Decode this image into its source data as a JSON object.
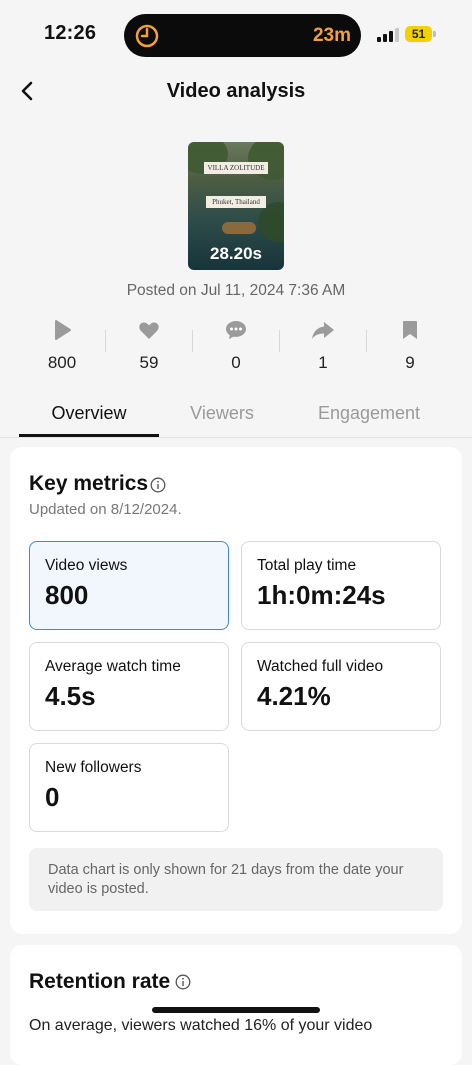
{
  "status_bar": {
    "time": "12:26",
    "timer_icon": "timer-icon",
    "timer_text": "23m",
    "battery_level": "51",
    "colors": {
      "timer": "#f3a03b",
      "battery": "#f5d000"
    }
  },
  "header": {
    "back_icon": "chevron-left-icon",
    "title": "Video analysis"
  },
  "video": {
    "thumbnail_plate_1": "VILLA ZOLITUDE",
    "thumbnail_plate_2": "Phuket, Thailand",
    "duration": "28.20s",
    "posted": "Posted on Jul 11, 2024 7:36 AM"
  },
  "stats": [
    {
      "icon": "play-icon",
      "value": "800"
    },
    {
      "icon": "heart-icon",
      "value": "59"
    },
    {
      "icon": "comment-icon",
      "value": "0"
    },
    {
      "icon": "share-icon",
      "value": "1"
    },
    {
      "icon": "bookmark-icon",
      "value": "9"
    }
  ],
  "tabs": [
    {
      "label": "Overview",
      "active": true
    },
    {
      "label": "Viewers",
      "active": false
    },
    {
      "label": "Engagement",
      "active": false
    }
  ],
  "key_metrics": {
    "title": "Key metrics",
    "updated": "Updated on 8/12/2024.",
    "metrics": [
      {
        "label": "Video views",
        "value": "800",
        "selected": true
      },
      {
        "label": "Total play time",
        "value": "1h:0m:24s",
        "selected": false
      },
      {
        "label": "Average watch time",
        "value": "4.5s",
        "selected": false
      },
      {
        "label": "Watched full video",
        "value": "4.21%",
        "selected": false
      },
      {
        "label": "New followers",
        "value": "0",
        "selected": false
      }
    ],
    "note": "Data chart is only shown for 21 days from the date your video is posted."
  },
  "retention": {
    "title": "Retention rate",
    "text": "On average, viewers watched 16% of your video"
  },
  "accent_color": "#3a8ad6"
}
